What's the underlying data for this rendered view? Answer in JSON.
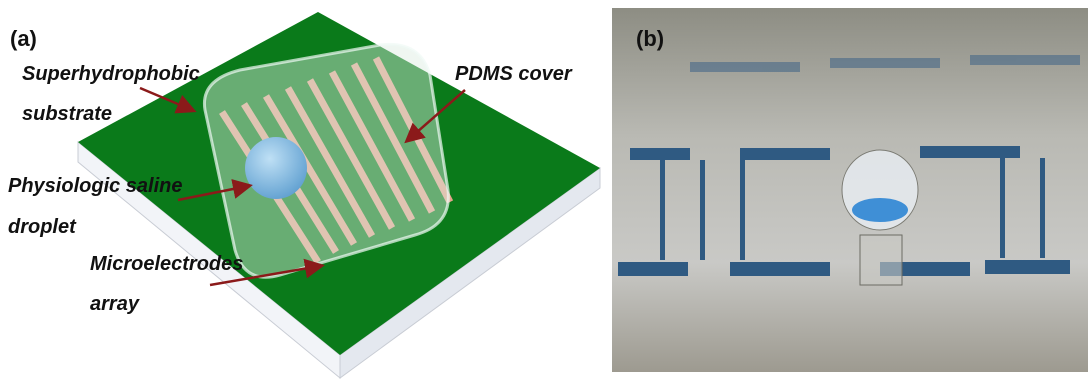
{
  "panels": [
    {
      "label": "(a)",
      "annotations": [
        {
          "lines": [
            "Superhydrophobic",
            "substrate"
          ]
        },
        {
          "lines": [
            "PDMS cover"
          ]
        },
        {
          "lines": [
            "Physiologic saline",
            "droplet"
          ]
        },
        {
          "lines": [
            "Microelectrodes",
            "array"
          ]
        }
      ]
    },
    {
      "label": "(b)"
    }
  ]
}
